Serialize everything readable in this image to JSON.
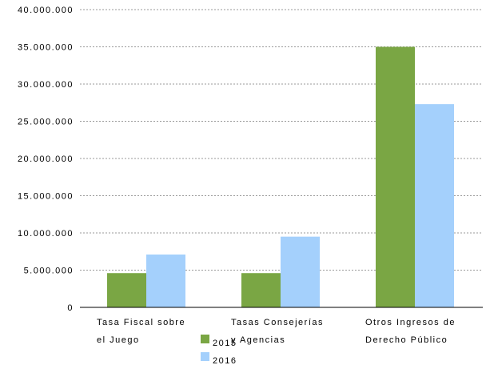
{
  "chart_data": {
    "type": "bar",
    "categories": [
      [
        "Tasa Fiscal sobre",
        "el Juego"
      ],
      [
        "Tasas Consejerías",
        "y Agencias"
      ],
      [
        "Otros Ingresos de",
        "Derecho Público"
      ]
    ],
    "series": [
      {
        "name": "2015",
        "color": "#7aa644",
        "values": [
          4600000,
          4600000,
          35000000
        ]
      },
      {
        "name": "2016",
        "color": "#a4d0fc",
        "values": [
          7100000,
          9500000,
          27300000
        ]
      }
    ],
    "yticks": [
      0,
      5000000,
      10000000,
      15000000,
      20000000,
      25000000,
      30000000,
      35000000,
      40000000
    ],
    "ytick_labels": [
      "0",
      "5.000.000",
      "10.000.000",
      "15.000.000",
      "20.000.000",
      "25.000.000",
      "30.000.000",
      "35.000.000",
      "40.000.000"
    ],
    "ylim": [
      0,
      40000000
    ],
    "grid": true,
    "legend_position": "bottom"
  }
}
